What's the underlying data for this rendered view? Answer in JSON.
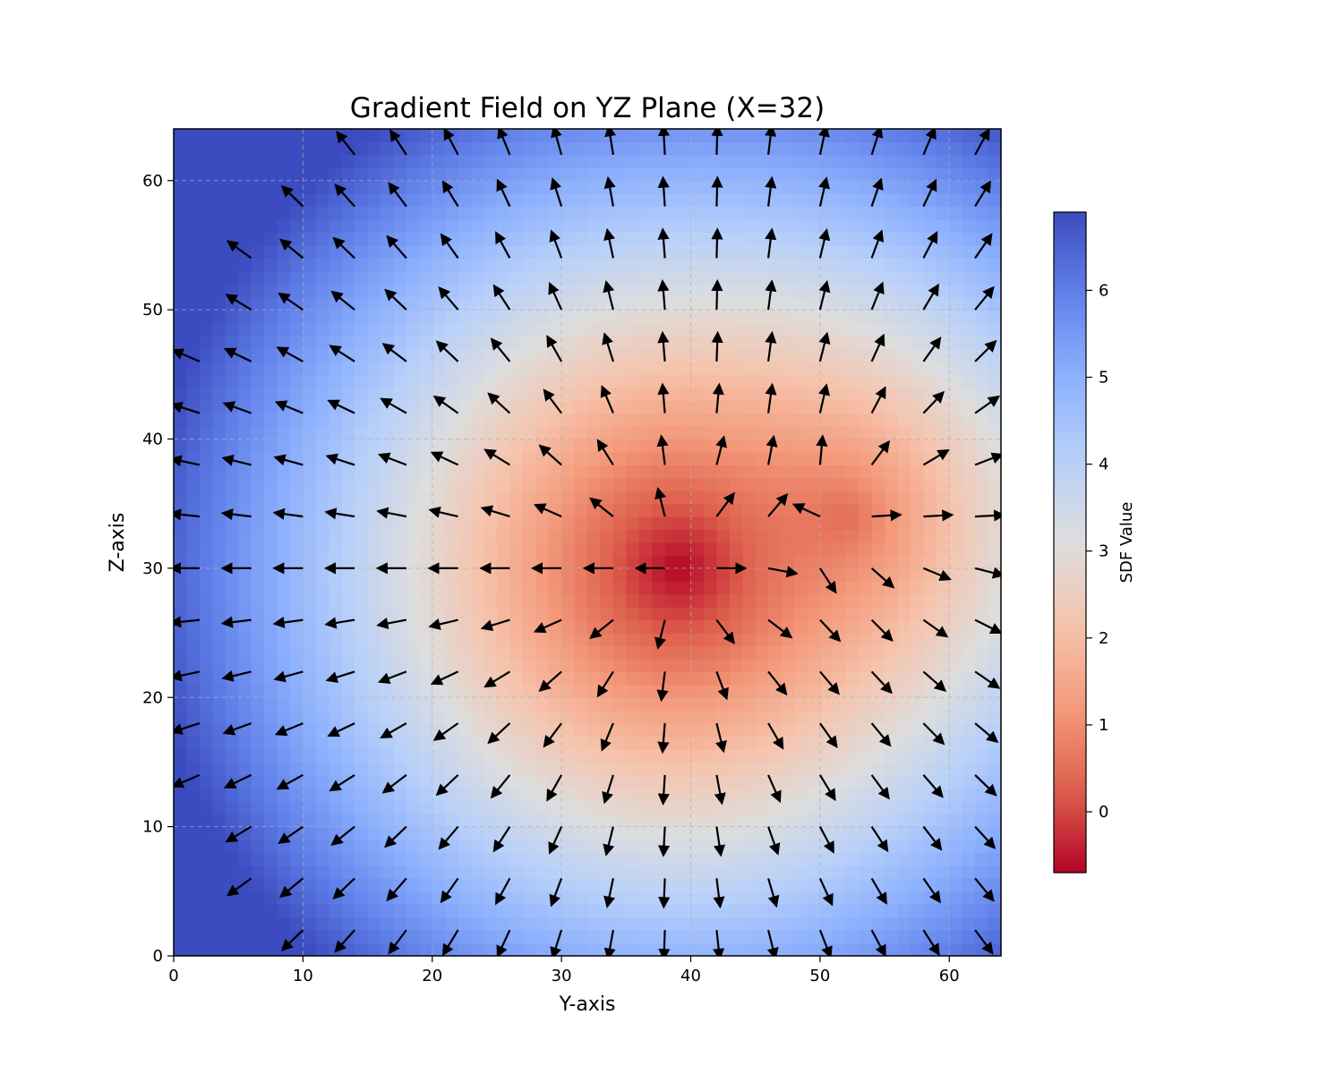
{
  "chart_data": {
    "type": "heatmap",
    "title": "Gradient Field on YZ Plane (X=32)",
    "xlabel": "Y-axis",
    "ylabel": "Z-axis",
    "xlim": [
      0,
      64
    ],
    "ylim": [
      0,
      64
    ],
    "xticks": [
      "0",
      "10",
      "20",
      "30",
      "40",
      "50",
      "60"
    ],
    "yticks": [
      "0",
      "10",
      "20",
      "30",
      "40",
      "50",
      "60"
    ],
    "grid": true,
    "colormap": "coolwarm_r",
    "colorbar": {
      "label": "SDF Value",
      "range": [
        -0.7,
        6.9
      ],
      "ticks": [
        "0",
        "1",
        "2",
        "3",
        "4",
        "5",
        "6"
      ],
      "placement": "right"
    },
    "heatmap_model": {
      "sources": [
        {
          "y": 39,
          "z": 30,
          "sdf_min": -0.7
        },
        {
          "y": 52,
          "z": 34,
          "sdf_min": 0.6
        }
      ],
      "field_max": 6.9,
      "grid_size": 64
    },
    "quiver": {
      "spacing": 4,
      "offset": 2,
      "color": "#000000",
      "description_of_direction": "arrows point away from low-SDF regions (gradient of SDF)"
    }
  }
}
